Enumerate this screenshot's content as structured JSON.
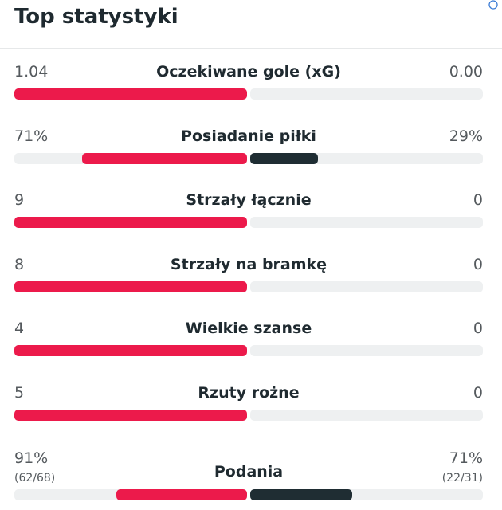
{
  "title": "Top statystyki",
  "stats": [
    {
      "label": "Oczekiwane gole (xG)",
      "home": 1.04,
      "away": 0,
      "away_label": "0.00"
    },
    {
      "label": "Posiadanie piłki",
      "home": 71,
      "away": 29,
      "home_label": "71%",
      "away_label": "29%"
    },
    {
      "label": "Strzały łącznie",
      "home": 9,
      "away": 0
    },
    {
      "label": "Strzały na bramkę",
      "home": 8,
      "away": 0
    },
    {
      "label": "Wielkie szanse",
      "home": 4,
      "away": 0
    },
    {
      "label": "Rzuty rożne",
      "home": 5,
      "away": 0
    },
    {
      "label": "Podania",
      "home": 91,
      "away": 71,
      "home_label": "91%",
      "away_label": "71%",
      "home_detail": "(62/68)",
      "away_detail": "(22/31)"
    }
  ]
}
